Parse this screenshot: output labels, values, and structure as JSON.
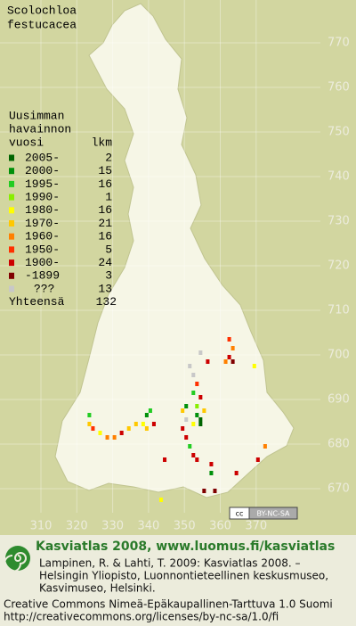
{
  "title_lines": [
    "Scolochloa",
    "festucacea"
  ],
  "legend": {
    "header": [
      "Uusimman",
      "havainnon",
      "vuosi",
      "lkm"
    ],
    "rows": [
      {
        "label": "2005-",
        "count": 2,
        "color": "#006400",
        "squares": [
          [
            354,
            685
          ],
          [
            354,
            684
          ]
        ]
      },
      {
        "label": "2000-",
        "count": 15,
        "color": "#00900a",
        "squares": [
          [
            350,
            688
          ],
          [
            353,
            686
          ],
          [
            339,
            686
          ],
          [
            357,
            673
          ]
        ]
      },
      {
        "label": "1995-",
        "count": 16,
        "color": "#22cc22",
        "squares": [
          [
            352,
            691
          ],
          [
            351,
            679
          ],
          [
            323,
            686
          ],
          [
            340,
            687
          ]
        ]
      },
      {
        "label": "1990-",
        "count": 1,
        "color": "#88ee00",
        "squares": [
          [
            353,
            688
          ]
        ]
      },
      {
        "label": "1980-",
        "count": 16,
        "color": "#ffff00",
        "squares": [
          [
            369,
            697
          ],
          [
            343,
            667
          ],
          [
            338,
            684
          ],
          [
            326,
            682
          ],
          [
            352,
            684
          ]
        ]
      },
      {
        "label": "1970-",
        "count": 21,
        "color": "#ffc800",
        "squares": [
          [
            323,
            684
          ],
          [
            334,
            683
          ],
          [
            336,
            684
          ],
          [
            339,
            683
          ],
          [
            349,
            687
          ],
          [
            355,
            687
          ]
        ]
      },
      {
        "label": "1960-",
        "count": 16,
        "color": "#ff8000",
        "squares": [
          [
            363,
            701
          ],
          [
            328,
            681
          ],
          [
            330,
            681
          ],
          [
            372,
            679
          ],
          [
            361,
            698
          ]
        ]
      },
      {
        "label": "1950-",
        "count": 5,
        "color": "#ff3000",
        "squares": [
          [
            362,
            703
          ],
          [
            353,
            693
          ],
          [
            324,
            683
          ]
        ]
      },
      {
        "label": "1900-",
        "count": 24,
        "color": "#cc0000",
        "squares": [
          [
            362,
            699
          ],
          [
            356,
            698
          ],
          [
            354,
            690
          ],
          [
            349,
            683
          ],
          [
            350,
            681
          ],
          [
            352,
            677
          ],
          [
            344,
            676
          ],
          [
            370,
            676
          ],
          [
            364,
            673
          ],
          [
            332,
            682
          ],
          [
            341,
            684
          ],
          [
            357,
            675
          ],
          [
            353,
            676
          ]
        ]
      },
      {
        "label": "-1899",
        "count": 3,
        "color": "#800000",
        "squares": [
          [
            363,
            698
          ],
          [
            358,
            669
          ],
          [
            355,
            669
          ]
        ]
      },
      {
        "label": "???",
        "count": 13,
        "color": "#c8c8c8",
        "squares": [
          [
            354,
            700
          ],
          [
            351,
            697
          ],
          [
            352,
            695
          ],
          [
            350,
            685
          ]
        ]
      }
    ],
    "total_label": "Yhteensä",
    "total": 132
  },
  "xticks": [
    310,
    320,
    330,
    340,
    350,
    360,
    370
  ],
  "yticks": [
    670,
    680,
    690,
    700,
    710,
    720,
    730,
    740,
    750,
    760,
    770
  ],
  "badge": {
    "cc": "cc",
    "text": "BY-NC-SA"
  },
  "footer": {
    "brand": "Kasviatlas 2008, www.luomus.fi/kasviatlas",
    "citation": [
      "Lampinen, R. & Lahti, T. 2009: Kasviatlas 2008. –",
      "Helsingin Yliopisto, Luonnontieteellinen keskusmuseo,",
      "Kasvimuseo, Helsinki."
    ],
    "license": [
      "Creative Commons Nimeä-Epäkaupallinen-Tarttuva 1.0 Suomi",
      "http://creativecommons.org/licenses/by-nc-sa/1.0/fi"
    ]
  }
}
